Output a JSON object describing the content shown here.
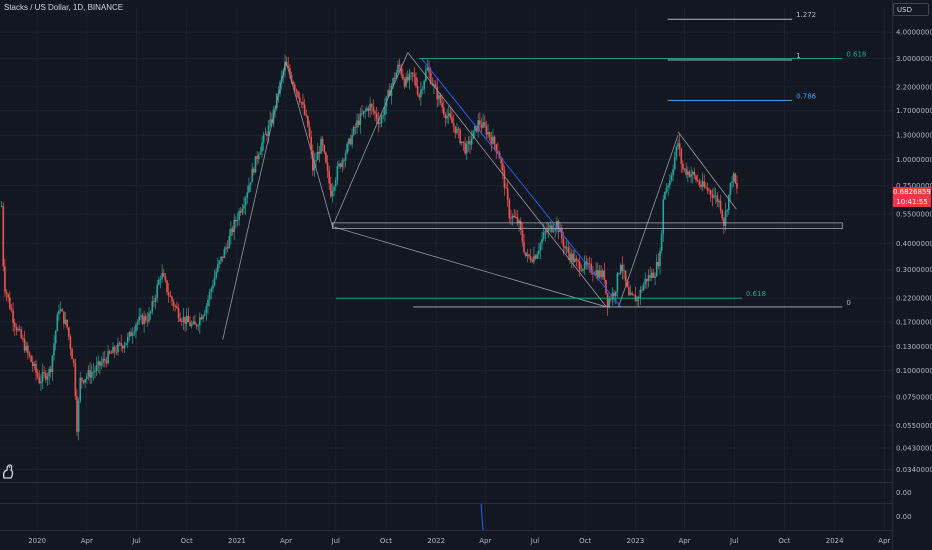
{
  "header": {
    "title": "Stacks / US Dollar, 1D, BINANCE",
    "currency_button": "USD"
  },
  "last_price": {
    "value": "0.68268591",
    "countdown": "10:41:55"
  },
  "indicator": {
    "ticks": [
      "0.00",
      "0.00"
    ]
  },
  "colors": {
    "background": "#131722",
    "up": "#26a69a",
    "down": "#ef5350",
    "fib_teal": "#22ab94",
    "fib_blue": "#2962ff",
    "grid": "#1e222d"
  },
  "chart_data": {
    "type": "candlestick",
    "title": "Stacks / US Dollar, 1D, BINANCE",
    "y_scale": "log",
    "ylim": [
      0.031,
      5.2
    ],
    "xlim": [
      "2019-10-25",
      "2024-04-15"
    ],
    "y_ticks": [
      {
        "value": 4.0,
        "label": "4.00000000"
      },
      {
        "value": 3.0,
        "label": "3.00000000"
      },
      {
        "value": 2.2,
        "label": "2.20000000"
      },
      {
        "value": 1.7,
        "label": "1.70000000"
      },
      {
        "value": 1.3,
        "label": "1.30000000"
      },
      {
        "value": 1.0,
        "label": "1.00000000"
      },
      {
        "value": 0.75,
        "label": "0.75000000"
      },
      {
        "value": 0.55,
        "label": "0.55000000"
      },
      {
        "value": 0.4,
        "label": "0.40000000"
      },
      {
        "value": 0.3,
        "label": "0.30000000"
      },
      {
        "value": 0.22,
        "label": "0.22000000"
      },
      {
        "value": 0.17,
        "label": "0.17000000"
      },
      {
        "value": 0.13,
        "label": "0.13000000"
      },
      {
        "value": 0.1,
        "label": "0.10000000"
      },
      {
        "value": 0.075,
        "label": "0.07500000"
      },
      {
        "value": 0.055,
        "label": "0.05500000"
      },
      {
        "value": 0.043,
        "label": "0.04300000"
      },
      {
        "value": 0.034,
        "label": "0.03400000"
      }
    ],
    "x_ticks": [
      {
        "date": "2020-01-01",
        "label": "2020"
      },
      {
        "date": "2020-04-01",
        "label": "Apr"
      },
      {
        "date": "2020-07-01",
        "label": "Jul"
      },
      {
        "date": "2020-10-01",
        "label": "Oct"
      },
      {
        "date": "2021-01-01",
        "label": "2021"
      },
      {
        "date": "2021-04-01",
        "label": "Apr"
      },
      {
        "date": "2021-07-01",
        "label": "Jul"
      },
      {
        "date": "2021-10-01",
        "label": "Oct"
      },
      {
        "date": "2022-01-01",
        "label": "2022"
      },
      {
        "date": "2022-04-01",
        "label": "Apr"
      },
      {
        "date": "2022-07-01",
        "label": "Jul"
      },
      {
        "date": "2022-10-01",
        "label": "Oct"
      },
      {
        "date": "2023-01-01",
        "label": "2023"
      },
      {
        "date": "2023-04-01",
        "label": "Apr"
      },
      {
        "date": "2023-07-01",
        "label": "Jul"
      },
      {
        "date": "2023-10-01",
        "label": "Oct"
      },
      {
        "date": "2024-01-01",
        "label": "2024"
      },
      {
        "date": "2024-04-01",
        "label": "Apr"
      }
    ],
    "price_path": [
      [
        "2019-10-28",
        0.6
      ],
      [
        "2019-11-01",
        0.26
      ],
      [
        "2019-11-20",
        0.17
      ],
      [
        "2019-12-15",
        0.12
      ],
      [
        "2020-01-05",
        0.09
      ],
      [
        "2020-01-25",
        0.1
      ],
      [
        "2020-02-10",
        0.2
      ],
      [
        "2020-02-25",
        0.16
      ],
      [
        "2020-03-10",
        0.1
      ],
      [
        "2020-03-13",
        0.05
      ],
      [
        "2020-03-20",
        0.09
      ],
      [
        "2020-04-15",
        0.1
      ],
      [
        "2020-05-15",
        0.12
      ],
      [
        "2020-06-15",
        0.14
      ],
      [
        "2020-07-01",
        0.17
      ],
      [
        "2020-07-25",
        0.18
      ],
      [
        "2020-08-15",
        0.29
      ],
      [
        "2020-09-01",
        0.22
      ],
      [
        "2020-09-20",
        0.18
      ],
      [
        "2020-10-15",
        0.16
      ],
      [
        "2020-11-05",
        0.2
      ],
      [
        "2020-11-25",
        0.3
      ],
      [
        "2020-12-10",
        0.37
      ],
      [
        "2020-12-28",
        0.5
      ],
      [
        "2021-01-15",
        0.65
      ],
      [
        "2021-02-10",
        1.1
      ],
      [
        "2021-03-05",
        1.5
      ],
      [
        "2021-03-20",
        2.2
      ],
      [
        "2021-03-30",
        2.8
      ],
      [
        "2021-04-12",
        2.4
      ],
      [
        "2021-04-28",
        1.9
      ],
      [
        "2021-05-12",
        1.4
      ],
      [
        "2021-05-20",
        0.9
      ],
      [
        "2021-06-05",
        1.2
      ],
      [
        "2021-06-22",
        0.7
      ],
      [
        "2021-07-05",
        0.9
      ],
      [
        "2021-07-20",
        1.1
      ],
      [
        "2021-08-10",
        1.5
      ],
      [
        "2021-09-01",
        1.8
      ],
      [
        "2021-09-20",
        1.5
      ],
      [
        "2021-10-10",
        2.2
      ],
      [
        "2021-10-25",
        2.8
      ],
      [
        "2021-11-05",
        2.3
      ],
      [
        "2021-11-20",
        2.5
      ],
      [
        "2021-12-01",
        2.0
      ],
      [
        "2021-12-15",
        2.7
      ],
      [
        "2021-12-28",
        2.2
      ],
      [
        "2022-01-15",
        1.7
      ],
      [
        "2022-02-05",
        1.4
      ],
      [
        "2022-02-25",
        1.1
      ],
      [
        "2022-03-20",
        1.5
      ],
      [
        "2022-04-05",
        1.35
      ],
      [
        "2022-04-25",
        1.1
      ],
      [
        "2022-05-05",
        0.8
      ],
      [
        "2022-05-15",
        0.55
      ],
      [
        "2022-06-01",
        0.5
      ],
      [
        "2022-06-15",
        0.34
      ],
      [
        "2022-07-01",
        0.35
      ],
      [
        "2022-07-20",
        0.45
      ],
      [
        "2022-08-10",
        0.5
      ],
      [
        "2022-08-25",
        0.38
      ],
      [
        "2022-09-15",
        0.32
      ],
      [
        "2022-10-15",
        0.3
      ],
      [
        "2022-11-05",
        0.28
      ],
      [
        "2022-11-10",
        0.21
      ],
      [
        "2022-11-25",
        0.24
      ],
      [
        "2022-12-05",
        0.33
      ],
      [
        "2022-12-20",
        0.22
      ],
      [
        "2023-01-05",
        0.22
      ],
      [
        "2023-01-20",
        0.27
      ],
      [
        "2023-02-05",
        0.29
      ],
      [
        "2023-02-15",
        0.35
      ],
      [
        "2023-02-22",
        0.7
      ],
      [
        "2023-03-05",
        0.8
      ],
      [
        "2023-03-20",
        1.2
      ],
      [
        "2023-03-28",
        0.9
      ],
      [
        "2023-04-15",
        0.85
      ],
      [
        "2023-05-01",
        0.75
      ],
      [
        "2023-05-20",
        0.7
      ],
      [
        "2023-06-05",
        0.62
      ],
      [
        "2023-06-12",
        0.5
      ],
      [
        "2023-06-20",
        0.65
      ],
      [
        "2023-06-28",
        0.85
      ],
      [
        "2023-07-08",
        0.68
      ]
    ],
    "trendlines": [
      {
        "from": [
          "2020-12-06",
          0.14
        ],
        "to": [
          "2021-04-01",
          2.9
        ]
      },
      {
        "from": [
          "2021-04-01",
          2.9
        ],
        "to": [
          "2021-06-25",
          0.48
        ]
      },
      {
        "from": [
          "2021-06-25",
          0.48
        ],
        "to": [
          "2021-11-10",
          3.2
        ]
      },
      {
        "from": [
          "2021-06-25",
          0.48
        ],
        "to": [
          "2022-11-09",
          0.2
        ]
      },
      {
        "from": [
          "2021-11-10",
          3.2
        ],
        "to": [
          "2022-11-09",
          0.2
        ]
      },
      {
        "from": [
          "2022-12-01",
          0.2
        ],
        "to": [
          "2023-03-20",
          1.3
        ]
      },
      {
        "from": [
          "2023-03-20",
          1.35
        ],
        "to": [
          "2023-07-05",
          0.58
        ]
      }
    ],
    "channel_line": {
      "from": [
        "2021-12-05",
        3.0
      ],
      "to": [
        "2022-12-05",
        0.2
      ],
      "color": "#2962ff"
    },
    "support_zone": {
      "from": "2021-06-25",
      "to": "2024-01-15",
      "high": 0.5,
      "low": 0.47
    },
    "fib_levels": [
      {
        "label": "1.272",
        "value": 4.6,
        "from": "2023-03-01",
        "to": "2023-10-15",
        "color": "#b2b5be"
      },
      {
        "label": "1",
        "value": 2.95,
        "from": "2023-03-01",
        "to": "2023-10-15",
        "color": "#b2b5be"
      },
      {
        "label": "0.618",
        "value": 3.0,
        "from": "2021-12-01",
        "to": "2024-01-15",
        "color": "#22ab94"
      },
      {
        "label": "0.786",
        "value": 1.9,
        "from": "2023-03-01",
        "to": "2023-10-15",
        "color": "#42a5f5"
      },
      {
        "label": "0.618",
        "value": 0.22,
        "from": "2021-07-01",
        "to": "2023-07-15",
        "color": "#22ab94"
      },
      {
        "label": "0",
        "value": 0.2,
        "from": "2021-11-20",
        "to": "2024-01-15",
        "color": "#b2b5be"
      }
    ]
  }
}
